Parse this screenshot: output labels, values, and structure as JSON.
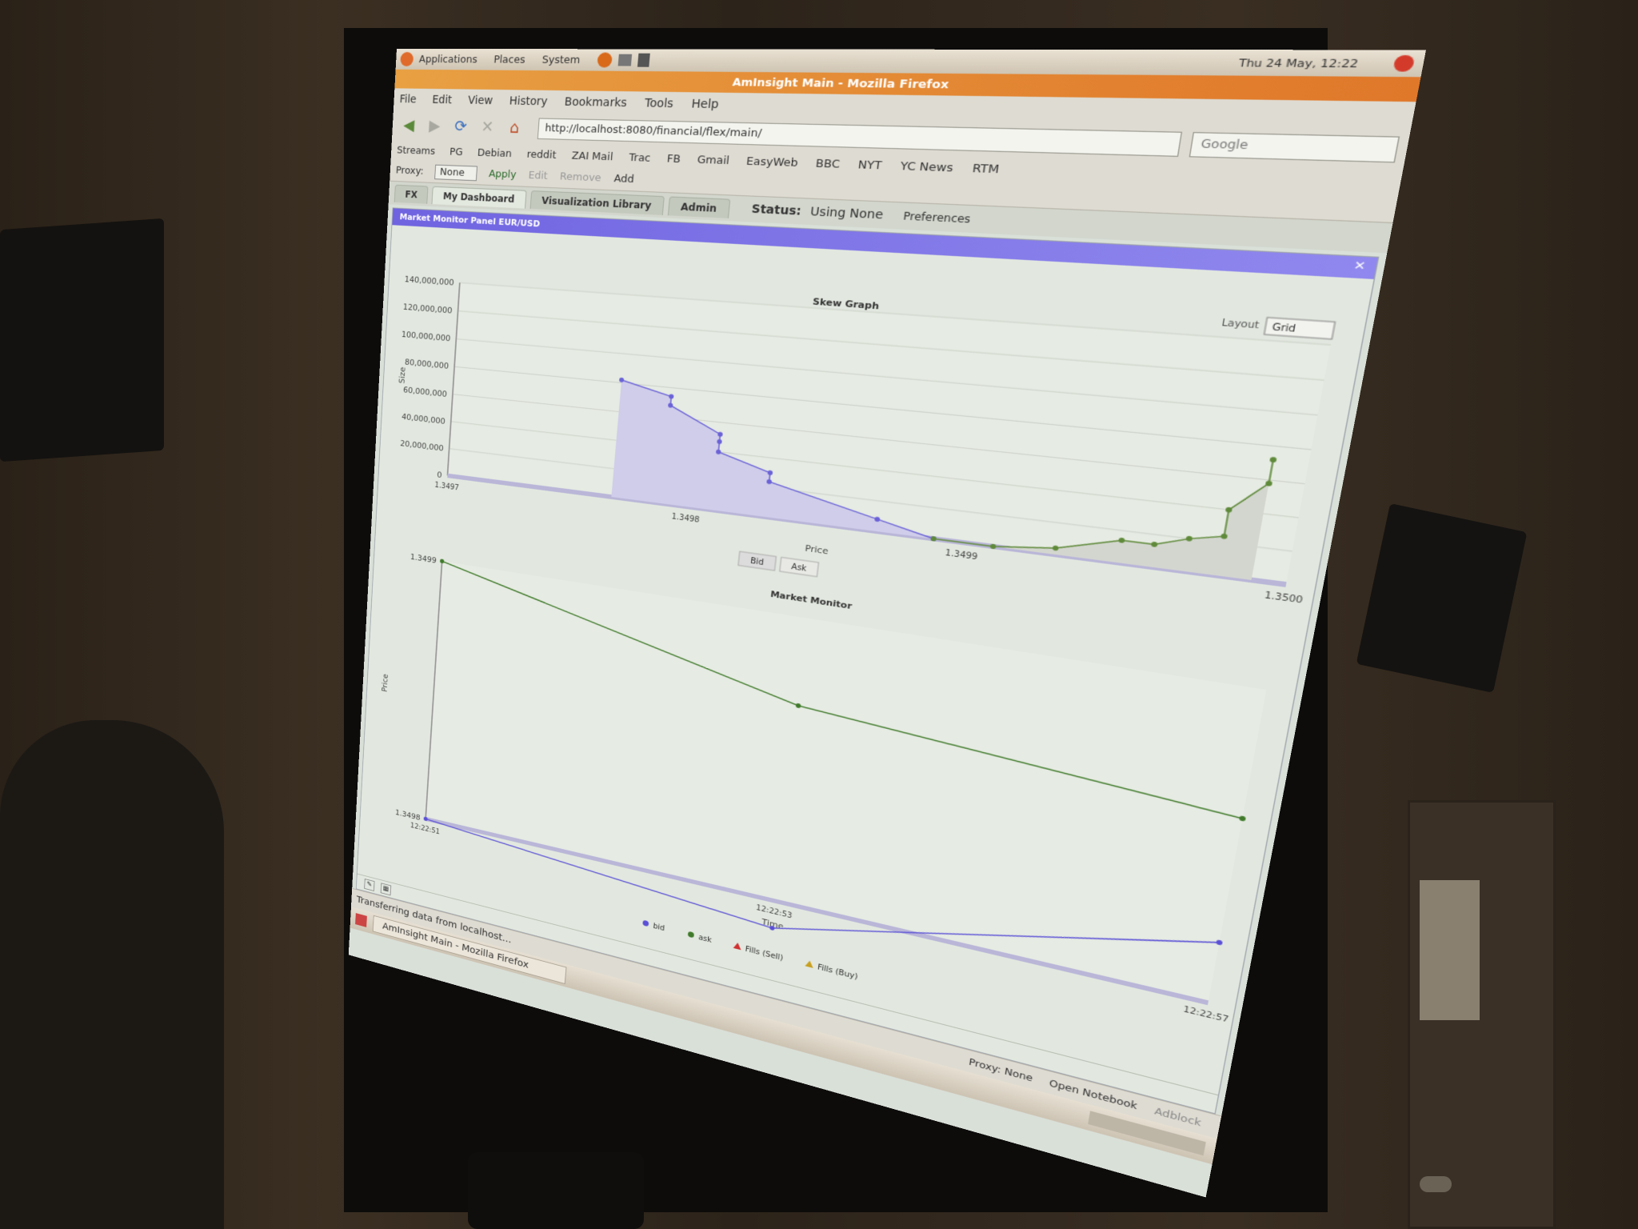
{
  "gnome_panel": {
    "menus": [
      "Applications",
      "Places",
      "System"
    ],
    "clock": "Thu 24 May, 12:22"
  },
  "window": {
    "title": "AmInsight Main - Mozilla Firefox"
  },
  "menubar": [
    "File",
    "Edit",
    "View",
    "History",
    "Bookmarks",
    "Tools",
    "Help"
  ],
  "navbar": {
    "url": "http://localhost:8080/financial/flex/main/",
    "search_placeholder": "Google"
  },
  "bookmarks": [
    "Streams",
    "PG",
    "Debian",
    "reddit",
    "ZAI Mail",
    "Trac",
    "FB",
    "Gmail",
    "EasyWeb",
    "BBC",
    "NYT",
    "YC News",
    "RTM"
  ],
  "proxy": {
    "label": "Proxy:",
    "value": "None",
    "apply": "Apply",
    "edit": "Edit",
    "remove": "Remove",
    "add": "Add"
  },
  "tabs": [
    "FX",
    "My Dashboard",
    "Visualization Library",
    "Admin"
  ],
  "status": {
    "label": "Status:",
    "value": "Using None",
    "preferences": "Preferences"
  },
  "panel": {
    "title": "Market Monitor Panel EUR/USD"
  },
  "skew_controls": {
    "layout_label": "Layout",
    "layout_value": "Grid",
    "bid_btn": "Bid",
    "ask_btn": "Ask"
  },
  "chart_data": [
    {
      "type": "area",
      "title": "Skew Graph",
      "xlabel": "Price",
      "ylabel": "Size",
      "yticks": [
        "140,000,000",
        "120,000,000",
        "100,000,000",
        "80,000,000",
        "60,000,000",
        "40,000,000",
        "20,000,000",
        "0"
      ],
      "xticks": [
        "1.3497",
        "1.3498",
        "1.3499",
        "1.3500"
      ],
      "ylim": [
        0,
        140000000
      ],
      "xlim": [
        1.3497,
        1.35
      ],
      "grid": true,
      "series": [
        {
          "name": "Bid",
          "color": "#6b62d8",
          "x": [
            1.34977,
            1.34979,
            1.34979,
            1.34981,
            1.34981,
            1.34981,
            1.34983,
            1.34983,
            1.34987,
            1.34989
          ],
          "y": [
            82000000,
            74000000,
            68000000,
            52000000,
            47000000,
            40000000,
            30000000,
            24000000,
            8000000,
            0
          ]
        },
        {
          "name": "Ask",
          "color": "#5f8a3a",
          "x": [
            1.34989,
            1.34991,
            1.34993,
            1.34995,
            1.34996,
            1.34997,
            1.34998,
            1.34998,
            1.34999,
            1.34999
          ],
          "y": [
            0,
            0,
            4000000,
            14000000,
            14000000,
            20000000,
            24000000,
            40000000,
            58000000,
            72000000
          ]
        }
      ]
    },
    {
      "type": "line",
      "title": "Market Monitor",
      "xlabel": "Time",
      "ylabel": "Price",
      "yticks": [
        "1.3499",
        "1.3498"
      ],
      "ylim": [
        1.3498,
        1.3499
      ],
      "xticks": [
        "12:22:51",
        "12:22:53",
        "12:22:57"
      ],
      "legend": [
        "bid",
        "ask",
        "Fills (Sell)",
        "Fills (Buy)"
      ],
      "legend_colors": [
        "#5a4fd6",
        "#3f7a2a",
        "#d03030",
        "#c8a020"
      ],
      "series": [
        {
          "name": "bid",
          "color": "#5a4fd6",
          "x": [
            "12:22:51",
            "12:22:53",
            "12:22:57"
          ],
          "y": [
            1.3498,
            1.34979,
            1.34982
          ]
        },
        {
          "name": "ask",
          "color": "#3f7a2a",
          "x": [
            "12:22:51",
            "12:22:53",
            "12:22:57"
          ],
          "y": [
            1.3499,
            1.34987,
            1.34986
          ]
        }
      ]
    }
  ],
  "statusbar": {
    "text": "Transferring data from localhost...",
    "proxy": "Proxy: None",
    "notebook": "Open Notebook",
    "adblock": "Adblock"
  },
  "taskbar": {
    "item": "AmInsight Main - Mozilla Firefox"
  },
  "colors": {
    "panel_header": "#7066e0",
    "title_bar": "#e5883a",
    "bid_area": "#cfcdea",
    "ask_area": "#d3d6cf"
  }
}
